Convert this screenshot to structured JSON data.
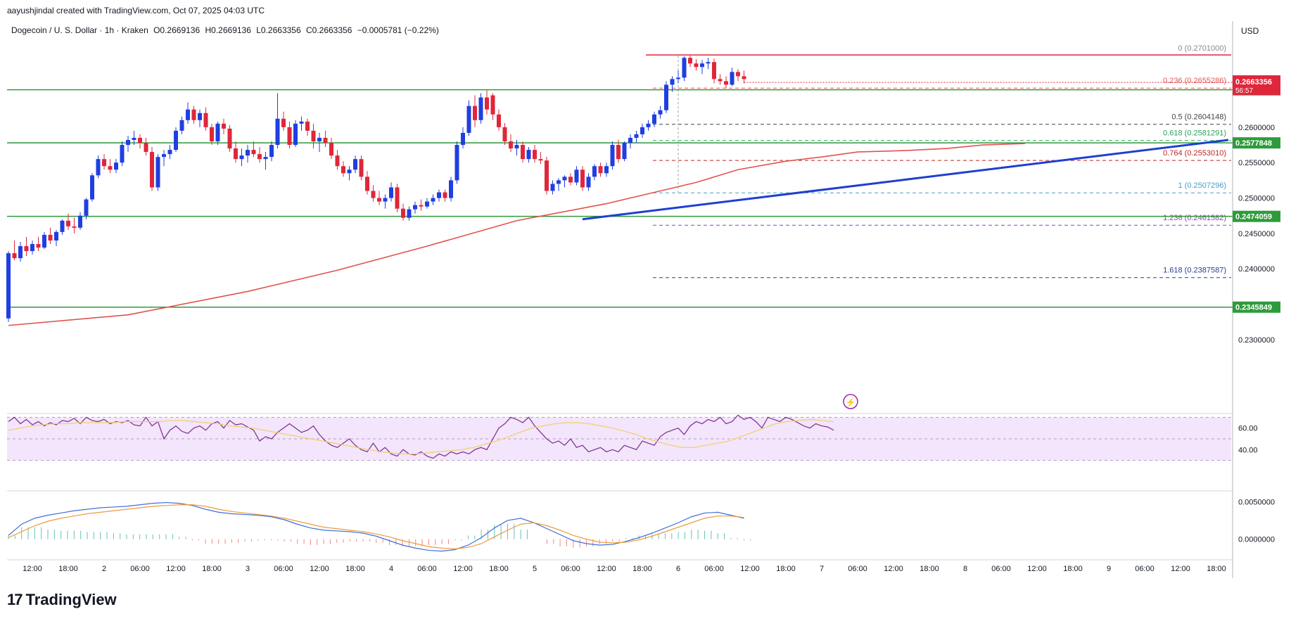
{
  "header": {
    "credit": "aayushjindal created with TradingView.com, Oct 07, 2025 04:03 UTC",
    "symbol": "Dogecoin / U. S. Dollar · 1h · Kraken",
    "open": "O0.2669136",
    "high": "H0.2669136",
    "low": "L0.2663356",
    "close": "C0.2663356",
    "change": "−0.0005781 (−0.22%)",
    "currency": "USD"
  },
  "brand": {
    "name": "TradingView",
    "logo_text": "17"
  },
  "colors": {
    "up": "#1f3fe0",
    "down": "#e0263a",
    "ma": "#e0524f",
    "support": "#2e9b3a",
    "trendline": "#1f3fd0",
    "rsi": "#7b2d8e",
    "rsi_ma": "#f2cf6b",
    "macd": "#3f6fd8",
    "signal": "#f09a3a"
  },
  "chart_data": {
    "type": "candlestick",
    "price_axis": {
      "ticks": [
        "0.2600000",
        "0.2550000",
        "0.2500000",
        "0.2450000",
        "0.2400000",
        "0.2300000"
      ],
      "ylim": [
        0.2285,
        0.2728
      ]
    },
    "time_axis": {
      "ticks": [
        "12:00",
        "18:00",
        "2",
        "06:00",
        "12:00",
        "18:00",
        "3",
        "06:00",
        "12:00",
        "18:00",
        "4",
        "06:00",
        "12:00",
        "18:00",
        "5",
        "06:00",
        "12:00",
        "18:00",
        "6",
        "06:00",
        "12:00",
        "18:00",
        "7",
        "06:00",
        "12:00",
        "18:00",
        "8",
        "06:00",
        "12:00",
        "18:00",
        "9",
        "06:00",
        "12:00",
        "18:00"
      ],
      "tick_bar_index": [
        4,
        10,
        16,
        22,
        28,
        34,
        40,
        46,
        52,
        58,
        64,
        70,
        76,
        82,
        88,
        94,
        100,
        106,
        112,
        118,
        124,
        130,
        136,
        142,
        148,
        154,
        160,
        166,
        172,
        178,
        184,
        190,
        196,
        202
      ]
    },
    "candles": [
      [
        0.233,
        0.2425,
        0.2325,
        0.2422
      ],
      [
        0.2422,
        0.244,
        0.2412,
        0.2415
      ],
      [
        0.2415,
        0.2438,
        0.241,
        0.2432
      ],
      [
        0.2432,
        0.2445,
        0.2418,
        0.2425
      ],
      [
        0.2425,
        0.244,
        0.242,
        0.2435
      ],
      [
        0.2435,
        0.2445,
        0.2425,
        0.243
      ],
      [
        0.243,
        0.2452,
        0.2428,
        0.2448
      ],
      [
        0.2448,
        0.2458,
        0.2435,
        0.244
      ],
      [
        0.244,
        0.2455,
        0.2432,
        0.2452
      ],
      [
        0.2452,
        0.247,
        0.2448,
        0.2468
      ],
      [
        0.2468,
        0.2478,
        0.2455,
        0.246
      ],
      [
        0.246,
        0.2472,
        0.245,
        0.2458
      ],
      [
        0.2458,
        0.248,
        0.2455,
        0.2475
      ],
      [
        0.2475,
        0.25,
        0.247,
        0.2498
      ],
      [
        0.2498,
        0.2535,
        0.2495,
        0.2532
      ],
      [
        0.2532,
        0.256,
        0.2528,
        0.2555
      ],
      [
        0.2555,
        0.2562,
        0.254,
        0.2545
      ],
      [
        0.2545,
        0.2555,
        0.2535,
        0.254
      ],
      [
        0.254,
        0.2555,
        0.2535,
        0.255
      ],
      [
        0.255,
        0.258,
        0.2545,
        0.2575
      ],
      [
        0.2575,
        0.2588,
        0.2565,
        0.2582
      ],
      [
        0.2582,
        0.2595,
        0.2575,
        0.2585
      ],
      [
        0.2585,
        0.259,
        0.257,
        0.2578
      ],
      [
        0.2578,
        0.2585,
        0.256,
        0.2565
      ],
      [
        0.2565,
        0.2572,
        0.251,
        0.2515
      ],
      [
        0.2515,
        0.2562,
        0.251,
        0.2558
      ],
      [
        0.2558,
        0.2568,
        0.2545,
        0.2562
      ],
      [
        0.2562,
        0.2575,
        0.2555,
        0.2568
      ],
      [
        0.2568,
        0.26,
        0.2565,
        0.2595
      ],
      [
        0.2595,
        0.2615,
        0.259,
        0.261
      ],
      [
        0.261,
        0.2635,
        0.2605,
        0.2625
      ],
      [
        0.2625,
        0.263,
        0.2605,
        0.261
      ],
      [
        0.261,
        0.2625,
        0.26,
        0.262
      ],
      [
        0.262,
        0.2628,
        0.2595,
        0.26
      ],
      [
        0.26,
        0.2605,
        0.2575,
        0.258
      ],
      [
        0.258,
        0.2608,
        0.2575,
        0.2605
      ],
      [
        0.2605,
        0.2612,
        0.259,
        0.2598
      ],
      [
        0.2598,
        0.2603,
        0.2565,
        0.257
      ],
      [
        0.257,
        0.258,
        0.255,
        0.2555
      ],
      [
        0.2555,
        0.257,
        0.2545,
        0.256
      ],
      [
        0.256,
        0.2575,
        0.255,
        0.2568
      ],
      [
        0.2568,
        0.258,
        0.2558,
        0.2562
      ],
      [
        0.2562,
        0.2572,
        0.255,
        0.2555
      ],
      [
        0.2555,
        0.2565,
        0.254,
        0.2558
      ],
      [
        0.2558,
        0.258,
        0.2552,
        0.2575
      ],
      [
        0.2575,
        0.2648,
        0.257,
        0.2612
      ],
      [
        0.2612,
        0.2622,
        0.2595,
        0.26
      ],
      [
        0.26,
        0.2608,
        0.257,
        0.2575
      ],
      [
        0.2575,
        0.261,
        0.2572,
        0.2605
      ],
      [
        0.2605,
        0.2615,
        0.2595,
        0.2608
      ],
      [
        0.2608,
        0.2612,
        0.2588,
        0.2595
      ],
      [
        0.2595,
        0.2605,
        0.257,
        0.258
      ],
      [
        0.258,
        0.2592,
        0.2565,
        0.2585
      ],
      [
        0.2585,
        0.2595,
        0.2572,
        0.2578
      ],
      [
        0.2578,
        0.2585,
        0.2555,
        0.256
      ],
      [
        0.256,
        0.2568,
        0.254,
        0.2545
      ],
      [
        0.2545,
        0.2552,
        0.253,
        0.2535
      ],
      [
        0.2535,
        0.2545,
        0.2525,
        0.254
      ],
      [
        0.254,
        0.256,
        0.2535,
        0.2555
      ],
      [
        0.2555,
        0.256,
        0.2525,
        0.253
      ],
      [
        0.253,
        0.2538,
        0.2505,
        0.251
      ],
      [
        0.251,
        0.2518,
        0.2495,
        0.25
      ],
      [
        0.25,
        0.251,
        0.249,
        0.2495
      ],
      [
        0.2495,
        0.2505,
        0.2485,
        0.25
      ],
      [
        0.25,
        0.2522,
        0.2495,
        0.2515
      ],
      [
        0.2515,
        0.252,
        0.248,
        0.2485
      ],
      [
        0.2485,
        0.2492,
        0.2468,
        0.2472
      ],
      [
        0.2472,
        0.2488,
        0.2468,
        0.2484
      ],
      [
        0.2484,
        0.2495,
        0.2478,
        0.249
      ],
      [
        0.249,
        0.2498,
        0.2482,
        0.2488
      ],
      [
        0.2488,
        0.25,
        0.2485,
        0.2495
      ],
      [
        0.2495,
        0.2505,
        0.249,
        0.25
      ],
      [
        0.25,
        0.2512,
        0.2495,
        0.2508
      ],
      [
        0.2508,
        0.2512,
        0.2495,
        0.25
      ],
      [
        0.25,
        0.253,
        0.2495,
        0.2525
      ],
      [
        0.2525,
        0.258,
        0.252,
        0.2575
      ],
      [
        0.2575,
        0.26,
        0.257,
        0.2592
      ],
      [
        0.2592,
        0.2638,
        0.2588,
        0.263
      ],
      [
        0.263,
        0.2645,
        0.26,
        0.261
      ],
      [
        0.261,
        0.2648,
        0.2605,
        0.2642
      ],
      [
        0.2642,
        0.2652,
        0.2618,
        0.2625
      ],
      [
        0.2645,
        0.2648,
        0.261,
        0.2618
      ],
      [
        0.2618,
        0.2625,
        0.2595,
        0.26
      ],
      [
        0.26,
        0.2606,
        0.2575,
        0.258
      ],
      [
        0.258,
        0.259,
        0.2565,
        0.257
      ],
      [
        0.257,
        0.2582,
        0.256,
        0.2575
      ],
      [
        0.2575,
        0.258,
        0.255,
        0.2555
      ],
      [
        0.2555,
        0.2572,
        0.255,
        0.2568
      ],
      [
        0.2568,
        0.2575,
        0.255,
        0.2555
      ],
      [
        0.2555,
        0.2565,
        0.2548,
        0.2553
      ],
      [
        0.2553,
        0.2558,
        0.2505,
        0.251
      ],
      [
        0.251,
        0.2525,
        0.2505,
        0.252
      ],
      [
        0.252,
        0.2528,
        0.251,
        0.2525
      ],
      [
        0.2525,
        0.2532,
        0.2515,
        0.253
      ],
      [
        0.253,
        0.2535,
        0.2518,
        0.2522
      ],
      [
        0.2522,
        0.2545,
        0.2518,
        0.254
      ],
      [
        0.254,
        0.2545,
        0.251,
        0.2515
      ],
      [
        0.2515,
        0.2535,
        0.251,
        0.253
      ],
      [
        0.253,
        0.2548,
        0.2525,
        0.2545
      ],
      [
        0.2545,
        0.255,
        0.253,
        0.2535
      ],
      [
        0.2535,
        0.255,
        0.253,
        0.2545
      ],
      [
        0.2545,
        0.258,
        0.254,
        0.2575
      ],
      [
        0.2575,
        0.2582,
        0.255,
        0.2555
      ],
      [
        0.2555,
        0.258,
        0.2552,
        0.2578
      ],
      [
        0.2578,
        0.259,
        0.257,
        0.2585
      ],
      [
        0.2585,
        0.2595,
        0.2578,
        0.259
      ],
      [
        0.259,
        0.2605,
        0.2585,
        0.26
      ],
      [
        0.26,
        0.261,
        0.2595,
        0.2605
      ],
      [
        0.2605,
        0.2622,
        0.26,
        0.2618
      ],
      [
        0.2618,
        0.263,
        0.2612,
        0.2624
      ],
      [
        0.2624,
        0.2665,
        0.262,
        0.266
      ],
      [
        0.266,
        0.2672,
        0.265,
        0.2668
      ],
      [
        0.2668,
        0.268,
        0.2662,
        0.267
      ],
      [
        0.267,
        0.27,
        0.2665,
        0.2698
      ],
      [
        0.2698,
        0.2701,
        0.2685,
        0.269
      ],
      [
        0.269,
        0.2696,
        0.268,
        0.2685
      ],
      [
        0.2685,
        0.2695,
        0.2675,
        0.269
      ],
      [
        0.269,
        0.2698,
        0.2682,
        0.2692
      ],
      [
        0.2692,
        0.2697,
        0.2662,
        0.2668
      ],
      [
        0.2668,
        0.2675,
        0.266,
        0.2665
      ],
      [
        0.2665,
        0.2672,
        0.2655,
        0.266
      ],
      [
        0.266,
        0.2684,
        0.2658,
        0.2678
      ],
      [
        0.2678,
        0.2682,
        0.2665,
        0.2672
      ],
      [
        0.2672,
        0.268,
        0.2662,
        0.2668
      ]
    ],
    "ma_line": [
      [
        0,
        0.232
      ],
      [
        20,
        0.2335
      ],
      [
        40,
        0.2368
      ],
      [
        55,
        0.2398
      ],
      [
        70,
        0.2432
      ],
      [
        85,
        0.2468
      ],
      [
        100,
        0.2492
      ],
      [
        108,
        0.2508
      ],
      [
        115,
        0.2522
      ],
      [
        122,
        0.254
      ],
      [
        130,
        0.2552
      ],
      [
        136,
        0.2558
      ],
      [
        142,
        0.2565
      ],
      [
        150,
        0.2567
      ],
      [
        157,
        0.257
      ],
      [
        163,
        0.2575
      ],
      [
        170,
        0.2577
      ]
    ],
    "fibonacci": [
      {
        "ratio": "0",
        "level": 0.2701,
        "label": "0 (0.2701000)",
        "color": "#888888"
      },
      {
        "ratio": "0.236",
        "level": 0.2655286,
        "label": "0.236 (0.2655286)",
        "color": "#e05a4f"
      },
      {
        "ratio": "0.5",
        "level": 0.2604148,
        "label": "0.5 (0.2604148)",
        "color": "#444444"
      },
      {
        "ratio": "0.618",
        "level": 0.2581291,
        "label": "0.618 (0.2581291)",
        "color": "#2ea05a"
      },
      {
        "ratio": "0.764",
        "level": 0.255301,
        "label": "0.764 (0.2553010)",
        "color": "#c0261f"
      },
      {
        "ratio": "1",
        "level": 0.2507296,
        "label": "1 (0.2507296)",
        "color": "#4a9fc4"
      },
      {
        "ratio": "1.236",
        "level": 0.2461582,
        "label": "1.236 (0.2461582)",
        "color": "#8e44ad"
      },
      {
        "ratio": "1.618",
        "level": 0.2387587,
        "label": "1.618 (0.2387587)",
        "color": "#2c3e90"
      }
    ],
    "support_levels": [
      {
        "level": 0.2652856,
        "label": "0.2652856"
      },
      {
        "level": 0.2577848,
        "label": "0.2577848"
      },
      {
        "level": 0.2474059,
        "label": "0.2474059"
      },
      {
        "level": 0.2345849,
        "label": "0.2345849"
      }
    ],
    "resistance_line": 0.2702,
    "trendline": {
      "start": [
        96,
        0.247
      ],
      "end": [
        204,
        0.2582
      ]
    },
    "current_price": {
      "value": "0.2663356",
      "countdown": "56:57"
    },
    "rsi": {
      "ticks": [
        "60.00",
        "40.00"
      ],
      "band": [
        30,
        70
      ],
      "values": [
        66,
        70,
        64,
        68,
        63,
        66,
        62,
        65,
        63,
        67,
        66,
        69,
        64,
        70,
        67,
        66,
        68,
        64,
        66,
        65,
        67,
        63,
        62,
        70,
        62,
        66,
        50,
        58,
        62,
        57,
        55,
        60,
        62,
        58,
        64,
        66,
        60,
        67,
        63,
        64,
        61,
        58,
        48,
        52,
        50,
        56,
        60,
        64,
        60,
        56,
        58,
        62,
        54,
        48,
        44,
        42,
        46,
        50,
        44,
        40,
        38,
        46,
        38,
        42,
        36,
        34,
        40,
        36,
        35,
        38,
        34,
        32,
        36,
        34,
        38,
        36,
        38,
        36,
        40,
        42,
        40,
        50,
        60,
        64,
        70,
        68,
        65,
        70,
        62,
        56,
        50,
        46,
        48,
        44,
        50,
        42,
        44,
        38,
        40,
        42,
        38,
        40,
        38,
        44,
        42,
        40,
        48,
        46,
        44,
        52,
        56,
        58,
        60,
        54,
        62,
        66,
        64,
        68,
        66,
        70,
        64,
        66,
        72,
        68,
        70,
        66,
        60,
        70,
        68,
        66,
        70,
        68,
        65,
        62,
        60,
        64,
        62,
        61,
        58
      ],
      "ma": [
        58,
        60,
        62,
        63,
        64,
        64,
        65,
        65,
        65,
        65,
        66,
        66,
        66,
        66,
        67,
        67,
        66,
        65,
        64,
        62,
        61,
        60,
        58,
        56,
        54,
        52,
        50,
        48,
        46,
        44,
        42,
        40,
        38,
        37,
        36,
        36,
        37,
        38,
        39,
        40,
        42,
        45,
        48,
        52,
        56,
        60,
        62,
        64,
        65,
        65,
        64,
        62,
        60,
        57,
        54,
        50,
        47,
        44,
        42,
        42,
        44,
        46,
        48,
        52,
        56,
        60,
        64,
        66,
        67,
        68,
        67,
        66
      ],
      "ma_start": 0
    },
    "macd": {
      "ticks": [
        "0.0050000",
        "0.0000000"
      ],
      "macd": [
        0.0005,
        0.002,
        0.0028,
        0.0032,
        0.0035,
        0.0038,
        0.004,
        0.0042,
        0.0043,
        0.0044,
        0.0046,
        0.0048,
        0.0049,
        0.0048,
        0.0045,
        0.004,
        0.0036,
        0.0034,
        0.0033,
        0.0032,
        0.003,
        0.0026,
        0.002,
        0.0015,
        0.0012,
        0.0011,
        0.001,
        0.0008,
        0.0004,
        -0.0002,
        -0.0008,
        -0.0012,
        -0.0015,
        -0.0016,
        -0.0014,
        -0.0008,
        0.0002,
        0.0015,
        0.0025,
        0.0028,
        0.0022,
        0.0014,
        0.0006,
        -0.0002,
        -0.0006,
        -0.0008,
        -0.0007,
        -0.0003,
        0.0002,
        0.0008,
        0.0015,
        0.0022,
        0.003,
        0.0035,
        0.0036,
        0.0032,
        0.0028
      ],
      "signal": [
        0.0002,
        0.001,
        0.0018,
        0.0024,
        0.0028,
        0.0031,
        0.0034,
        0.0036,
        0.0038,
        0.004,
        0.0042,
        0.0044,
        0.0045,
        0.0046,
        0.0046,
        0.0044,
        0.004,
        0.0037,
        0.0035,
        0.0033,
        0.0031,
        0.0028,
        0.0024,
        0.002,
        0.0016,
        0.0014,
        0.0012,
        0.001,
        0.0007,
        0.0003,
        -0.0002,
        -0.0006,
        -0.001,
        -0.0012,
        -0.0013,
        -0.0011,
        -0.0006,
        0.0003,
        0.0012,
        0.002,
        0.0022,
        0.0018,
        0.0012,
        0.0005,
        0.0,
        -0.0004,
        -0.0005,
        -0.0004,
        -0.0001,
        0.0004,
        0.001,
        0.0016,
        0.0022,
        0.0028,
        0.0031,
        0.0031,
        0.0029
      ],
      "ylim": [
        -0.0022,
        0.0058
      ]
    }
  }
}
